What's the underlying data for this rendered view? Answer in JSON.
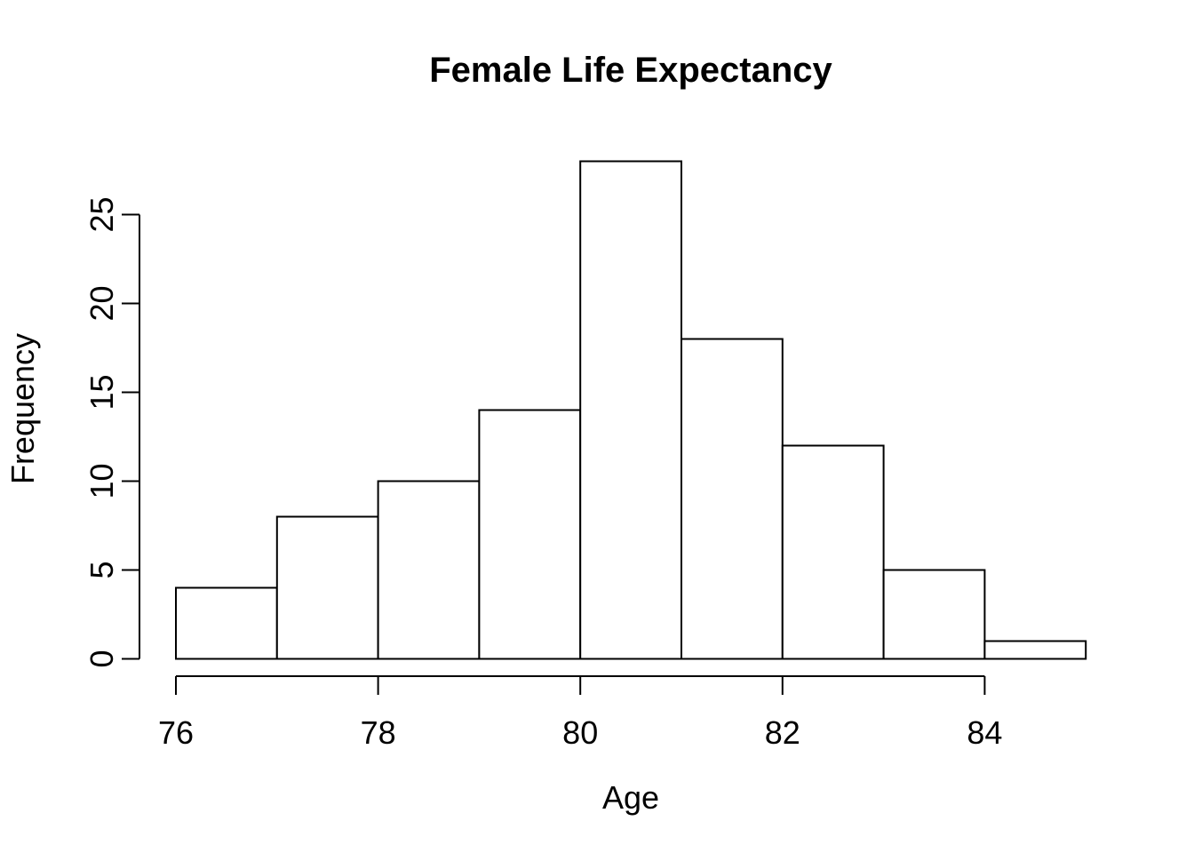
{
  "chart_data": {
    "type": "bar",
    "chart_style": "histogram",
    "title": "Female Life Expectancy",
    "xlabel": "Age",
    "ylabel": "Frequency",
    "bin_edges": [
      76,
      77,
      78,
      79,
      80,
      81,
      82,
      83,
      84,
      85
    ],
    "values": [
      4,
      8,
      10,
      14,
      28,
      18,
      12,
      5,
      1
    ],
    "x_ticks": [
      76,
      78,
      80,
      82,
      84
    ],
    "y_ticks": [
      0,
      5,
      10,
      15,
      20,
      25
    ],
    "xlim": [
      76,
      85
    ],
    "ylim": [
      0,
      28
    ],
    "grid": false,
    "legend": "none",
    "bar_fill": "#ffffff",
    "line_color": "#000000",
    "background": "#ffffff"
  }
}
